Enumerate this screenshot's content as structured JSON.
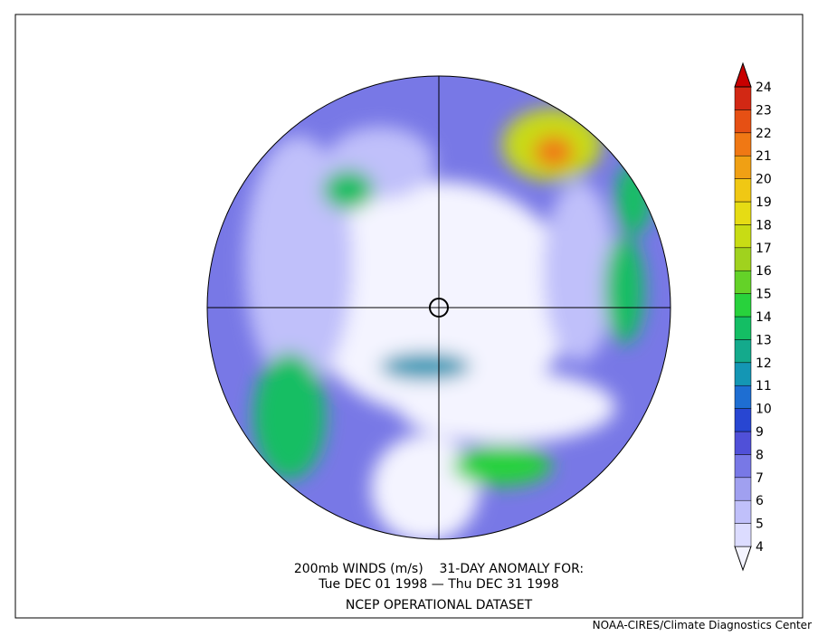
{
  "map": {
    "title_lines": [
      "200mb WINDS (m/s)    31-DAY ANOMALY FOR:",
      "Tue DEC 01 1998 — Thu DEC 31 1998",
      "NCEP OPERATIONAL DATASET"
    ],
    "credit": "NOAA-CIRES/Climate Diagnostics Center"
  },
  "colorbar": {
    "levels": [
      4,
      5,
      6,
      7,
      8,
      9,
      10,
      11,
      12,
      13,
      14,
      15,
      16,
      17,
      18,
      19,
      20,
      21,
      22,
      23,
      24
    ],
    "colors": [
      "#f4f4ff",
      "#dcdcff",
      "#c0c0fa",
      "#a0a0f0",
      "#7878e6",
      "#5050d8",
      "#2846d2",
      "#1e6ed2",
      "#1496b4",
      "#14aa8c",
      "#14be64",
      "#28d23c",
      "#64d228",
      "#a0d21e",
      "#c8dc14",
      "#e6dc14",
      "#f0c814",
      "#f0a014",
      "#f07814",
      "#e65014",
      "#d22814",
      "#c80000"
    ]
  }
}
